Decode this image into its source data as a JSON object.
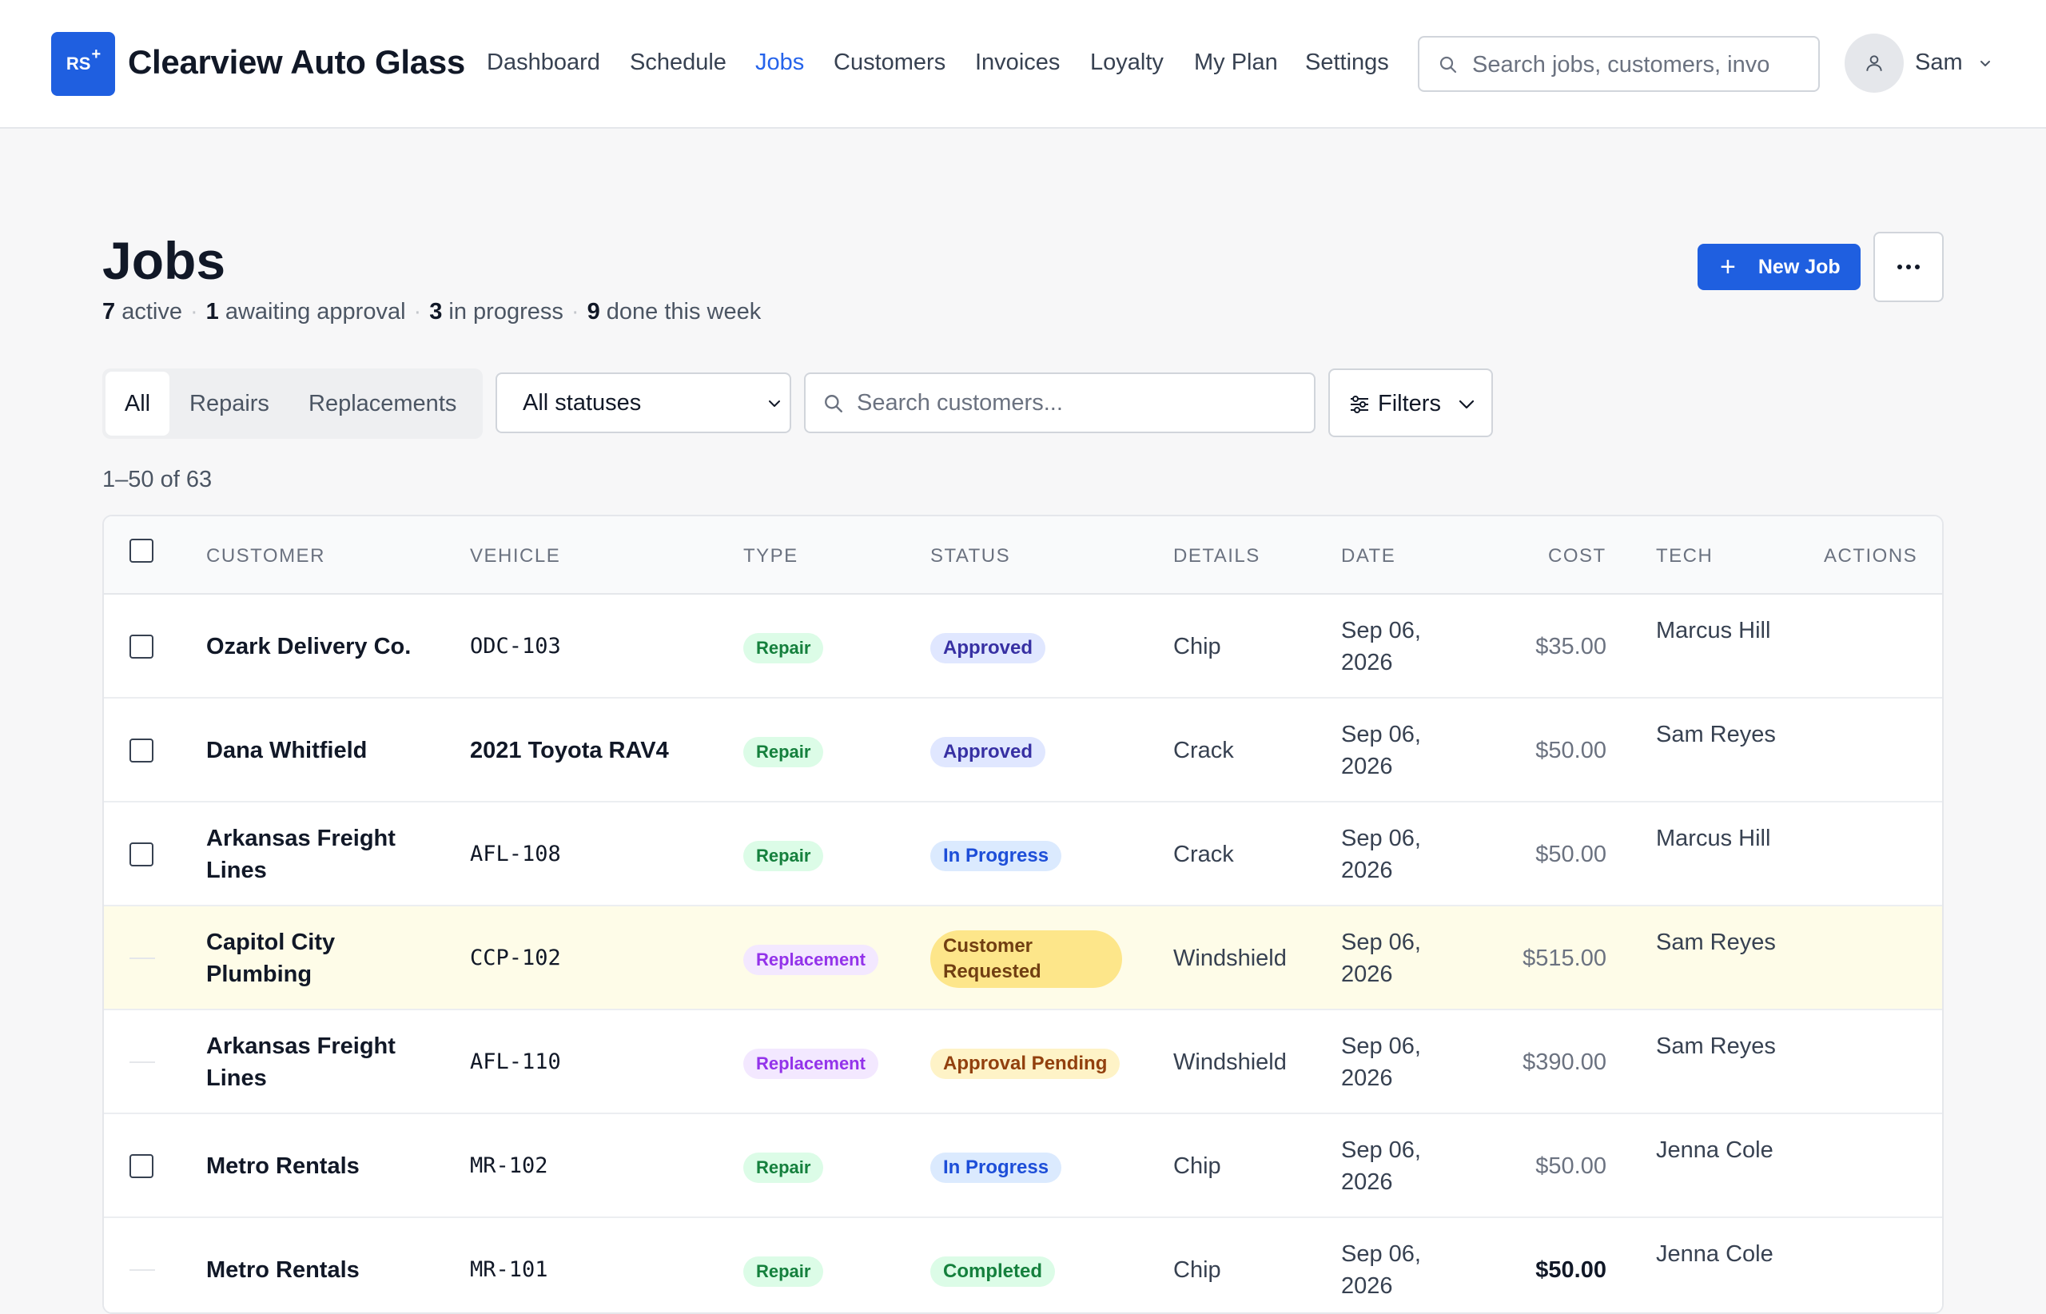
{
  "app": {
    "logo_text": "RS",
    "logo_mark": "+",
    "brand": "Clearview Auto Glass"
  },
  "nav": [
    {
      "label": "Dashboard",
      "active": false
    },
    {
      "label": "Schedule",
      "active": false
    },
    {
      "label": "Jobs",
      "active": true
    },
    {
      "label": "Customers",
      "active": false
    },
    {
      "label": "Invoices",
      "active": false
    },
    {
      "label": "Loyalty",
      "active": false
    },
    {
      "label": "My Plan",
      "active": false
    },
    {
      "label": "Settings",
      "active": false
    }
  ],
  "global_search": {
    "placeholder": "Search jobs, customers, invo"
  },
  "user": {
    "name": "Sam"
  },
  "page": {
    "title": "Jobs",
    "summary": {
      "active_count": "7",
      "active_label": "active",
      "awaiting_count": "1",
      "awaiting_label": "awaiting approval",
      "progress_count": "3",
      "progress_label": "in progress",
      "done_count": "9",
      "done_label": "done this week"
    },
    "new_job_label": "New Job"
  },
  "filters": {
    "segments": [
      "All",
      "Repairs",
      "Replacements"
    ],
    "selected_segment": "All",
    "status_select": "All statuses",
    "customer_search_placeholder": "Search customers...",
    "filters_label": "Filters"
  },
  "pagination": {
    "range": "1–50 of 63"
  },
  "table": {
    "columns": {
      "customer": "CUSTOMER",
      "vehicle": "VEHICLE",
      "type": "TYPE",
      "status": "STATUS",
      "details": "DETAILS",
      "date": "DATE",
      "cost": "COST",
      "tech": "TECH",
      "actions": "ACTIONS"
    },
    "rows": [
      {
        "customer": "Ozark Delivery Co.",
        "vehicle": "ODC-103",
        "type": "Repair",
        "status": "Approved",
        "details": "Chip",
        "date": "Sep 06, 2026",
        "cost": "$35.00",
        "tech": "Marcus Hill"
      },
      {
        "customer": "Dana Whitfield",
        "vehicle": "2021 Toyota RAV4",
        "type": "Repair",
        "status": "Approved",
        "details": "Crack",
        "date": "Sep 06, 2026",
        "cost": "$50.00",
        "tech": "Sam Reyes"
      },
      {
        "customer": "Arkansas Freight Lines",
        "vehicle": "AFL-108",
        "type": "Repair",
        "status": "In Progress",
        "details": "Crack",
        "date": "Sep 06, 2026",
        "cost": "$50.00",
        "tech": "Marcus Hill"
      },
      {
        "customer": "Capitol City Plumbing",
        "vehicle": "CCP-102",
        "type": "Replacement",
        "status": "Customer Requested",
        "details": "Windshield",
        "date": "Sep 06, 2026",
        "cost": "$515.00",
        "tech": "Sam Reyes"
      },
      {
        "customer": "Arkansas Freight Lines",
        "vehicle": "AFL-110",
        "type": "Replacement",
        "status": "Approval Pending",
        "details": "Windshield",
        "date": "Sep 06, 2026",
        "cost": "$390.00",
        "tech": "Sam Reyes"
      },
      {
        "customer": "Metro Rentals",
        "vehicle": "MR-102",
        "type": "Repair",
        "status": "In Progress",
        "details": "Chip",
        "date": "Sep 06, 2026",
        "cost": "$50.00",
        "tech": "Jenna Cole"
      },
      {
        "customer": "Metro Rentals",
        "vehicle": "MR-101",
        "type": "Repair",
        "status": "Completed",
        "details": "Chip",
        "date": "Sep 06, 2026",
        "cost": "$50.00",
        "tech": "Jenna Cole"
      }
    ]
  },
  "colors": {
    "accent": "#1f5fe0",
    "nav_active": "#2563eb",
    "highlight_row": "#fefce8"
  }
}
